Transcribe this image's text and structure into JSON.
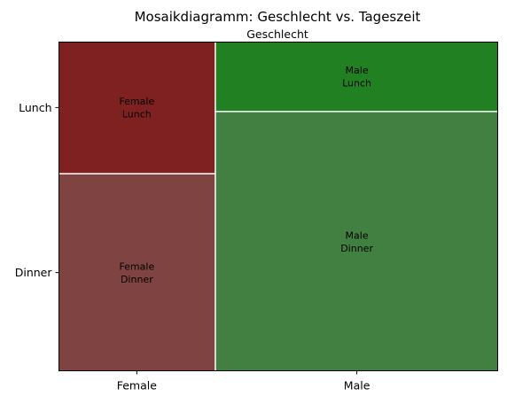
{
  "chart_data": {
    "type": "mosaic",
    "title": "Mosaikdiagramm: Geschlecht vs. Tageszeit",
    "subtitle": "Geschlecht",
    "xlabel": "",
    "ylabel": "",
    "categories": [
      "Female",
      "Male"
    ],
    "y_categories": [
      "Dinner",
      "Lunch"
    ],
    "x_proportions": [
      0.356,
      0.644
    ],
    "cells": [
      {
        "x": "Female",
        "y": "Dinner",
        "proportion_within_x": 0.6,
        "label_lines": [
          "Female",
          "Dinner"
        ],
        "color": "#7f4341"
      },
      {
        "x": "Female",
        "y": "Lunch",
        "proportion_within_x": 0.4,
        "label_lines": [
          "Female",
          "Lunch"
        ],
        "color": "#7f2121"
      },
      {
        "x": "Male",
        "y": "Dinner",
        "proportion_within_x": 0.79,
        "label_lines": [
          "Male",
          "Dinner"
        ],
        "color": "#428041"
      },
      {
        "x": "Male",
        "y": "Lunch",
        "proportion_within_x": 0.21,
        "label_lines": [
          "Male",
          "Lunch"
        ],
        "color": "#218021"
      }
    ],
    "grid": false,
    "legend": "none"
  }
}
